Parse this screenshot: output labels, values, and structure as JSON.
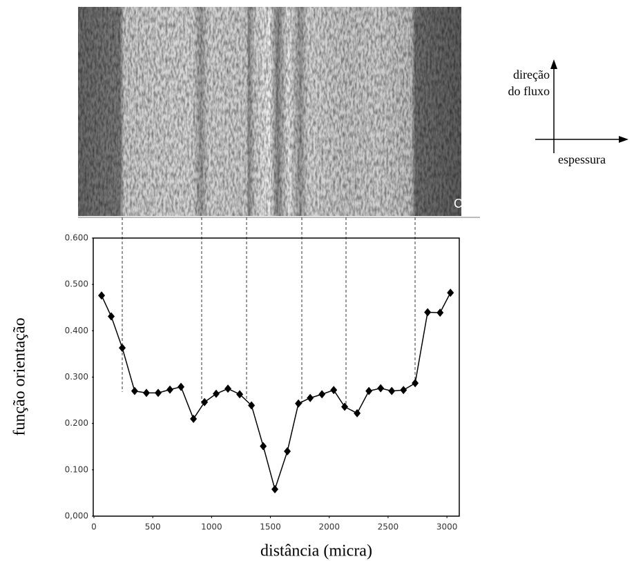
{
  "chart_data": {
    "type": "line",
    "xlabel": "distância (micra)",
    "ylabel": "função orientação",
    "annotations": [
      "direção",
      "do fluxo",
      "espessura",
      "C"
    ],
    "x": [
      65,
      147,
      241,
      346,
      446,
      546,
      646,
      740,
      846,
      940,
      1039,
      1139,
      1239,
      1339,
      1439,
      1538,
      1644,
      1738,
      1838,
      1938,
      2038,
      2131,
      2237,
      2337,
      2437,
      2531,
      2631,
      2730,
      2836,
      2942,
      3030
    ],
    "series": [
      {
        "color": "#000000",
        "values": [
          0.476,
          0.431,
          0.363,
          0.27,
          0.266,
          0.266,
          0.273,
          0.279,
          0.21,
          0.246,
          0.264,
          0.275,
          0.263,
          0.239,
          0.151,
          0.058,
          0.14,
          0.243,
          0.255,
          0.263,
          0.272,
          0.236,
          0.222,
          0.27,
          0.276,
          0.27,
          0.272,
          0.287,
          0.44,
          0.439,
          0.482
        ]
      }
    ],
    "xlim": [
      0,
      3105
    ],
    "xticks": [
      0,
      500,
      1000,
      1500,
      2000,
      2500,
      3000
    ],
    "ylim": [
      0,
      0.6
    ],
    "yticks": [
      {
        "value": 0,
        "label": "0,000"
      },
      {
        "value": 0.1,
        "label": "0.100"
      },
      {
        "value": 0.2,
        "label": "0.200"
      },
      {
        "value": 0.3,
        "label": "0.300"
      },
      {
        "value": 0.4,
        "label": "0.400"
      },
      {
        "value": 0.5,
        "label": "0.500"
      },
      {
        "value": 0.6,
        "label": "0.600"
      }
    ]
  }
}
